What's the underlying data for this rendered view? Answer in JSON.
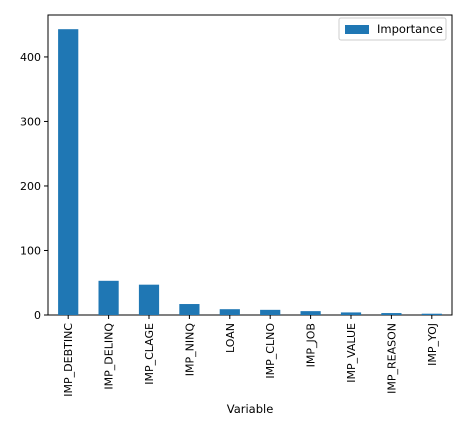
{
  "chart_data": {
    "type": "bar",
    "categories": [
      "IMP_DEBTINC",
      "IMP_DELINQ",
      "IMP_CLAGE",
      "IMP_NINQ",
      "LOAN",
      "IMP_CLNO",
      "IMP_JOB",
      "IMP_VALUE",
      "IMP_REASON",
      "IMP_YOJ"
    ],
    "series": [
      {
        "name": "Importance",
        "values": [
          443,
          53,
          47,
          17,
          9,
          8,
          6,
          4,
          3,
          2
        ]
      }
    ],
    "xlabel": "Variable",
    "ylabel": "",
    "ylim": [
      0,
      465
    ],
    "yticks": [
      0,
      100,
      200,
      300,
      400
    ],
    "grid": false,
    "legend_position": "top-right",
    "bar_color": "#1f77b4"
  }
}
